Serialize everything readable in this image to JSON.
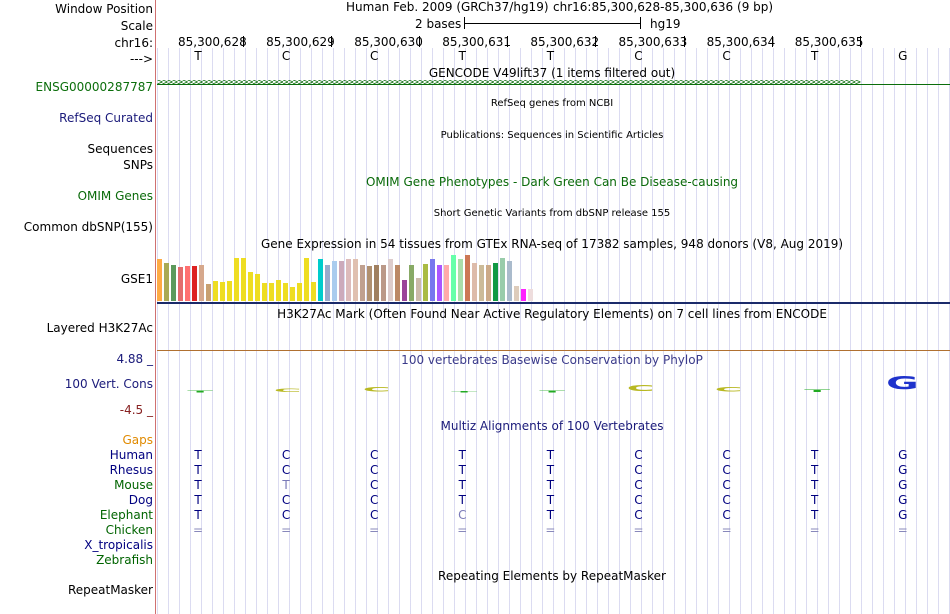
{
  "labels": {
    "window_position": "Window Position",
    "scale": "Scale",
    "chrom": "chr16:",
    "arrow": "--->",
    "gencode": "ENSG00000287787",
    "refseq": "RefSeq Curated",
    "sequences": "Sequences",
    "snps": "SNPs",
    "omim": "OMIM Genes",
    "dbsnp": "Common dbSNP(155)",
    "gse": "GSE1",
    "h3k27ac": "Layered H3K27Ac",
    "cons_max": "4.88 _",
    "cons": "100 Vert. Cons",
    "cons_min": "-4.5 _",
    "gaps": "Gaps",
    "species": [
      "Human",
      "Rhesus",
      "Mouse",
      "Dog",
      "Elephant",
      "Chicken",
      "X_tropicalis",
      "Zebrafish"
    ],
    "repeatmasker": "RepeatMasker"
  },
  "header": {
    "assembly": "Human Feb. 2009 (GRCh37/hg19)",
    "position": "chr16:85,300,628-85,300,636 (9 bp)",
    "scale_text": "2 bases",
    "scale_db": "hg19"
  },
  "ruler_positions": [
    "85,300,628",
    "85,300,629",
    "85,300,630",
    "85,300,631",
    "85,300,632",
    "85,300,633",
    "85,300,634",
    "85,300,635"
  ],
  "bases": [
    "T",
    "C",
    "C",
    "T",
    "T",
    "C",
    "C",
    "T",
    "G"
  ],
  "tracks": {
    "gencode": "GENCODE V49lift37 (1 items filtered out)",
    "refseq": "RefSeq genes from NCBI",
    "publications": "Publications: Sequences in Scientific Articles",
    "omim": "OMIM Gene Phenotypes - Dark Green Can Be Disease-causing",
    "dbsnp": "Short Genetic Variants from dbSNP release 155",
    "gtex": "Gene Expression in 54 tissues from GTEx RNA-seq of 17382 samples, 948 donors (V8, Aug 2019)",
    "h3k27ac": "H3K27Ac Mark (Often Found Near Active Regulatory Elements) on 7 cell lines from ENCODE",
    "phylop": "100 vertebrates Basewise Conservation by PhyloP",
    "multiz": "Multiz Alignments of 100 Vertebrates",
    "repeatmasker": "Repeating Elements by RepeatMasker"
  },
  "alignment_rows": [
    [
      "T",
      "C",
      "C",
      "T",
      "T",
      "C",
      "C",
      "T",
      "G"
    ],
    [
      "T",
      "C",
      "C",
      "T",
      "T",
      "C",
      "C",
      "T",
      "G"
    ],
    [
      "T",
      "T",
      "C",
      "T",
      "T",
      "C",
      "C",
      "T",
      "G"
    ],
    [
      "T",
      "C",
      "C",
      "T",
      "T",
      "C",
      "C",
      "T",
      "G"
    ],
    [
      "T",
      "C",
      "C",
      "C",
      "T",
      "C",
      "C",
      "T",
      "G"
    ],
    [
      "=",
      "=",
      "=",
      "=",
      "=",
      "=",
      "=",
      "=",
      "="
    ]
  ],
  "phylop_letters": [
    "T",
    "C",
    "C",
    "T",
    "T",
    "C",
    "C",
    "T",
    "G"
  ],
  "gtex_colors": [
    "#ffaa44",
    "#aaaa55",
    "#5c9a5c",
    "#e36c6c",
    "#ff7070",
    "#dd2222",
    "#d6a88c",
    "#c8a070",
    "#eedd22",
    "#eedd22",
    "#eedd22",
    "#eedd22",
    "#eedd22",
    "#eedd22",
    "#eedd22",
    "#eedd22",
    "#eedd22",
    "#eedd22",
    "#eedd22",
    "#eedd22",
    "#eedd22",
    "#eedd22",
    "#eedd22",
    "#00cccc",
    "#99aacc",
    "#aaccee",
    "#ccaabb",
    "#ddbbbb",
    "#e0c0b0",
    "#c0a090",
    "#b09070",
    "#a08060",
    "#bb9988",
    "#ddcccc",
    "#bb8866",
    "#994499",
    "#88aa66",
    "#ccbbaa",
    "#aabb44",
    "#7777ee",
    "#aa55ff",
    "#ffaaaa",
    "#66ffaa",
    "#aaddaa",
    "#cc7755",
    "#ddbbaa",
    "#ccbb99",
    "#ccaa88",
    "#119944",
    "#99ccaa",
    "#aabbcc",
    "#ddccbb",
    "#ff22ff",
    "#eedddd"
  ],
  "gtex_values": [
    44,
    40,
    37,
    35,
    36,
    36,
    38,
    18,
    21,
    20,
    21,
    45,
    45,
    30,
    28,
    19,
    19,
    22,
    19,
    15,
    19,
    45,
    20,
    44,
    38,
    42,
    42,
    44,
    44,
    38,
    36,
    37,
    37,
    44,
    37,
    22,
    38,
    24,
    39,
    44,
    38,
    38,
    48,
    44,
    48,
    40,
    38,
    37,
    40,
    45,
    42,
    16,
    13,
    13
  ],
  "colors": {
    "label_blue": "#1a1a7a",
    "gencode_green": "#0b6e0b",
    "omim_green": "#0a6a0a",
    "gaps_orange": "#e08a00",
    "cons_red": "#882222",
    "rhesus_blue": "#000080",
    "green_species": "#006400"
  }
}
